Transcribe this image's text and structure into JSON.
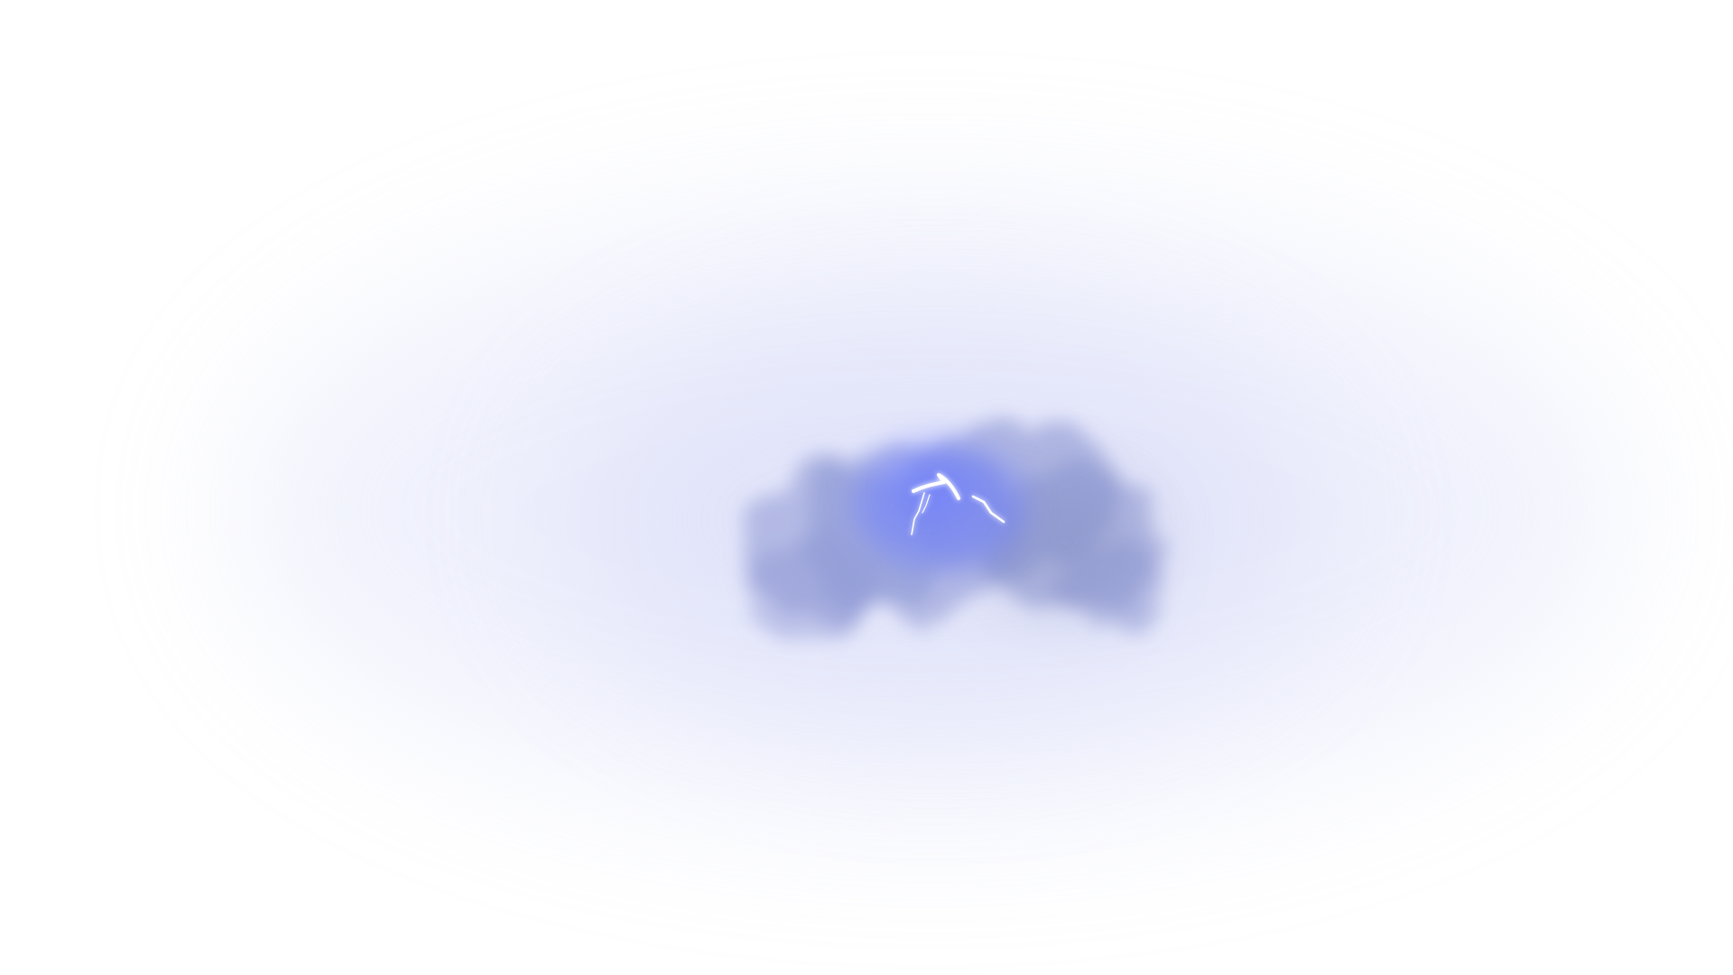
{
  "scene": {
    "background_color": "#ffffff",
    "haze_color": "#c8cdf5",
    "cloud_color": "#8d97d4",
    "cloud_shadow_color": "#7f88b8",
    "glow_color": "#6f80ff",
    "lightning_color": "#ffffff"
  }
}
